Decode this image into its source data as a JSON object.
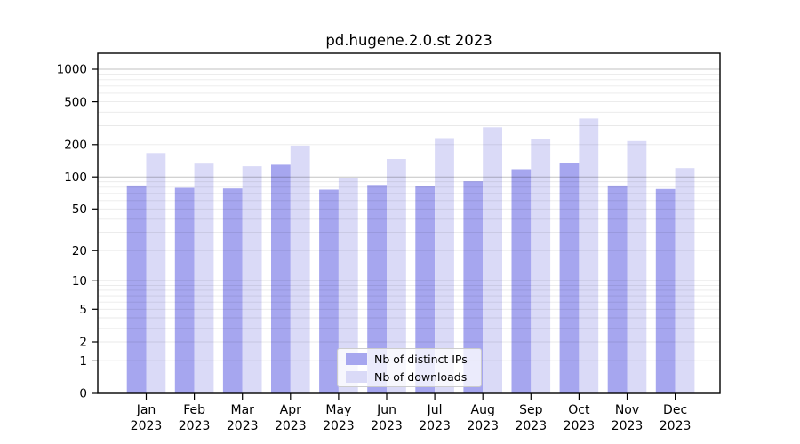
{
  "title": "pd.hugene.2.0.st 2023",
  "chart_data": {
    "type": "bar",
    "title": "pd.hugene.2.0.st 2023",
    "categories": [
      "Jan",
      "Feb",
      "Mar",
      "Apr",
      "May",
      "Jun",
      "Jul",
      "Aug",
      "Sep",
      "Oct",
      "Nov",
      "Dec"
    ],
    "year": "2023",
    "series": [
      {
        "name": "Nb of distinct IPs",
        "color": "#a6a6ef",
        "values": [
          83,
          79,
          78,
          130,
          76,
          84,
          82,
          91,
          118,
          135,
          83,
          77
        ]
      },
      {
        "name": "Nb of downloads",
        "color": "#dadaf7",
        "values": [
          167,
          133,
          126,
          196,
          98,
          147,
          230,
          290,
          225,
          350,
          216,
          121
        ]
      }
    ],
    "yscale": "log1p",
    "ylim": [
      0,
      1400
    ],
    "ytick_labels": [
      0,
      1,
      2,
      5,
      10,
      20,
      50,
      100,
      200,
      500,
      1000
    ],
    "major_gridlines": [
      1,
      10,
      100,
      1000
    ],
    "minor_gridlines": [
      2,
      3,
      4,
      5,
      6,
      7,
      8,
      9,
      20,
      30,
      40,
      50,
      60,
      70,
      80,
      90,
      200,
      300,
      400,
      500,
      600,
      700,
      800,
      900
    ],
    "grid": true,
    "legend_position": "lower center"
  },
  "colors": {
    "background": "#ffffff",
    "bar_distinct_ips": "#a6a6ef",
    "bar_downloads": "#dadaf7",
    "grid_major": "rgba(0,0,0,0.24)",
    "grid_minor": "rgba(0,0,0,0.085)",
    "axis": "#000000",
    "legend_border": "#cccccc"
  }
}
